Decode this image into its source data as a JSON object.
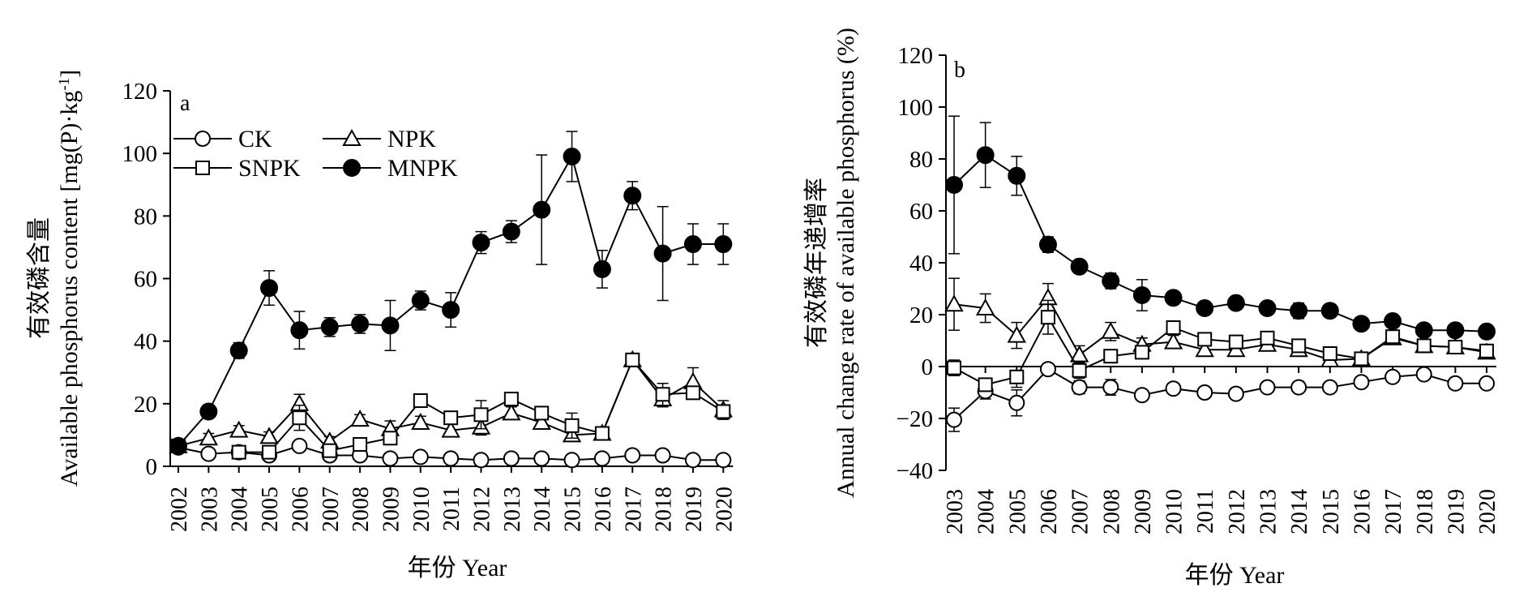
{
  "chart_data": [
    {
      "panel_label": "a",
      "type": "line",
      "ylabel_cn": "有效磷含量",
      "ylabel_en": "Available phosphorus content [mg(P)·kg",
      "ylabel_sup": "-1",
      "ylabel_end": "]",
      "xlabel": "年份 Year",
      "ylim": [
        0,
        120
      ],
      "yticks": [
        "0",
        "20",
        "40",
        "60",
        "80",
        "100",
        "120"
      ],
      "x": [
        "2002",
        "2003",
        "2004",
        "2005",
        "2006",
        "2007",
        "2008",
        "2009",
        "2010",
        "2011",
        "2012",
        "2013",
        "2014",
        "2015",
        "2016",
        "2017",
        "2018",
        "2019",
        "2020"
      ],
      "legend": [
        "CK",
        "NPK",
        "SNPK",
        "MNPK"
      ],
      "legend_position": "top-left",
      "series": [
        {
          "name": "CK",
          "marker": "circle-open",
          "values": [
            6,
            4,
            4.5,
            3.5,
            6.5,
            3.5,
            3.5,
            2.5,
            3,
            2.5,
            2,
            2.5,
            2.5,
            2,
            2.5,
            3.5,
            3.5,
            2,
            2
          ],
          "errors": [
            0,
            1,
            0.5,
            0.5,
            1.5,
            0.8,
            0.5,
            0.5,
            0.5,
            0.5,
            0.5,
            0.5,
            0.5,
            0.5,
            0.5,
            0.8,
            0.8,
            0.5,
            0.5
          ]
        },
        {
          "name": "NPK",
          "marker": "triangle-open",
          "values": [
            6.5,
            9,
            11.5,
            9.5,
            20,
            8,
            15,
            12,
            14,
            11.5,
            12.5,
            17,
            14,
            10,
            10.5,
            34,
            21.5,
            27,
            18
          ],
          "errors": [
            0,
            1.5,
            1.5,
            1.5,
            3,
            1.5,
            1.5,
            2.5,
            2,
            2,
            2.5,
            2,
            2,
            1.5,
            1.5,
            2,
            2.5,
            4.5,
            3
          ]
        },
        {
          "name": "SNPK",
          "marker": "square-open",
          "values": [
            6.5,
            null,
            4.5,
            4.5,
            15.5,
            5,
            7,
            9,
            21,
            15.5,
            16.5,
            21.5,
            17,
            13,
            10.5,
            34,
            23,
            23.5,
            17.5
          ],
          "errors": [
            0,
            0,
            1,
            1,
            4,
            1,
            1.5,
            2,
            2,
            2,
            4.5,
            2,
            2,
            4,
            2,
            2,
            3.5,
            2,
            2
          ]
        },
        {
          "name": "MNPK",
          "marker": "circle-filled",
          "values": [
            6.5,
            17.5,
            37,
            57,
            43.5,
            44.5,
            45.5,
            45,
            53,
            50,
            71.5,
            75,
            82,
            99,
            63,
            86.5,
            68,
            71,
            71
          ],
          "errors": [
            0,
            2,
            2.5,
            5.5,
            6,
            3,
            3,
            8,
            3,
            5.5,
            3.5,
            3.5,
            17.5,
            8,
            6,
            4.5,
            15,
            6.5,
            6.5
          ]
        }
      ]
    },
    {
      "panel_label": "b",
      "type": "line",
      "ylabel_cn": "有效磷年递增率",
      "ylabel_en": "Annual change rate of available phosphorus (%)",
      "xlabel": "年份 Year",
      "ylim": [
        -40,
        120
      ],
      "yticks": [
        "−40",
        "−20",
        "0",
        "20",
        "40",
        "60",
        "80",
        "100",
        "120"
      ],
      "x": [
        "2003",
        "2004",
        "2005",
        "2006",
        "2007",
        "2008",
        "2009",
        "2010",
        "2011",
        "2012",
        "2013",
        "2014",
        "2015",
        "2016",
        "2017",
        "2018",
        "2019",
        "2020"
      ],
      "series": [
        {
          "name": "CK",
          "marker": "circle-open",
          "values": [
            -20.5,
            -9.5,
            -14,
            -1,
            -8,
            -8,
            -11,
            -8.5,
            -10,
            -10.5,
            -8,
            -8,
            -8,
            -6,
            -4,
            -3,
            -6.5,
            -6.5
          ],
          "errors": [
            4.5,
            3,
            5,
            1.5,
            2.5,
            3,
            2,
            2,
            2,
            1.5,
            1.5,
            1.5,
            1.5,
            1,
            1,
            1,
            1.5,
            1.5
          ]
        },
        {
          "name": "NPK",
          "marker": "triangle-open",
          "values": [
            24,
            22.5,
            12,
            26.5,
            4.5,
            13.5,
            8.5,
            9.5,
            6.5,
            6.5,
            8.5,
            6.5,
            2.5,
            3,
            11,
            8,
            7.5,
            5.5
          ],
          "errors": [
            10,
            5.5,
            5,
            5.5,
            3.5,
            3.5,
            2.5,
            2.5,
            2,
            2,
            2,
            2,
            1.5,
            1.5,
            1.5,
            1.5,
            1.5,
            1.5
          ]
        },
        {
          "name": "SNPK",
          "marker": "square-open",
          "values": [
            -0.5,
            -7,
            -4,
            19,
            -1.5,
            4,
            5.5,
            15,
            10.5,
            9.5,
            11,
            8,
            5,
            3,
            11.5,
            8,
            7.5,
            6
          ],
          "errors": [
            3,
            2.5,
            4,
            6.5,
            3,
            2.5,
            2,
            2.5,
            2,
            2,
            2,
            2,
            1.5,
            1.5,
            1.5,
            1.5,
            1.5,
            1.5
          ]
        },
        {
          "name": "MNPK",
          "marker": "circle-filled",
          "values": [
            70,
            81.5,
            73.5,
            47,
            38.5,
            33,
            27.5,
            26.5,
            22.5,
            24.5,
            22.5,
            21.5,
            21.5,
            16.5,
            17.5,
            14,
            14,
            13.5
          ],
          "errors": [
            26.5,
            12.5,
            7.5,
            3,
            2.5,
            3,
            6,
            2.5,
            2,
            2.5,
            2,
            3,
            2.5,
            1.5,
            1.5,
            1.5,
            1.5,
            1.5
          ]
        }
      ]
    }
  ]
}
